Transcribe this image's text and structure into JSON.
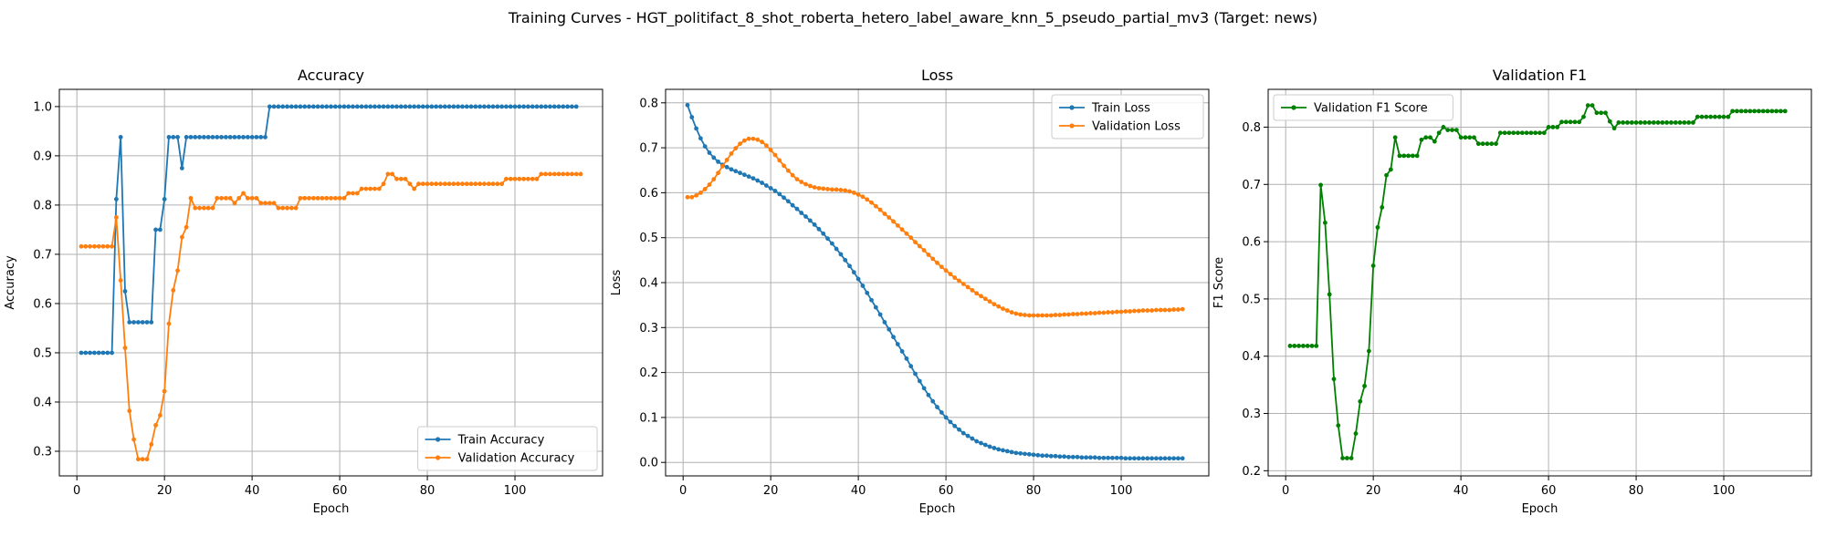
{
  "figure": {
    "suptitle": "Training Curves - HGT_politifact_8_shot_roberta_hetero_label_aware_knn_5_pseudo_partial_mv3 (Target: news)"
  },
  "colors": {
    "blue": "#1f77b4",
    "orange": "#ff7f0e",
    "green": "#008000",
    "grid": "#b0b0b0"
  },
  "chart_data": [
    {
      "type": "line",
      "title": "Accuracy",
      "xlabel": "Epoch",
      "ylabel": "Accuracy",
      "xlim": [
        -4,
        120
      ],
      "ylim": [
        0.25,
        1.035
      ],
      "xticks": [
        0,
        20,
        40,
        60,
        80,
        100
      ],
      "yticks": [
        0.3,
        0.4,
        0.5,
        0.6,
        0.7,
        0.8,
        0.9,
        1.0
      ],
      "yticklabels": [
        "0.3",
        "0.4",
        "0.5",
        "0.6",
        "0.7",
        "0.8",
        "0.9",
        "1.0"
      ],
      "grid": true,
      "legend_position": "lower-right",
      "series": [
        {
          "name": "Train Accuracy",
          "color": "#1f77b4",
          "y": [
            0.5,
            0.5,
            0.5,
            0.5,
            0.5,
            0.5,
            0.5,
            0.5,
            0.812,
            0.938,
            0.625,
            0.562,
            0.562,
            0.562,
            0.562,
            0.562,
            0.562,
            0.75,
            0.75,
            0.812,
            0.938,
            0.938,
            0.938,
            0.875,
            0.938,
            0.938,
            0.938,
            0.938,
            0.938,
            0.938,
            0.938,
            0.938,
            0.938,
            0.938,
            0.938,
            0.938,
            0.938,
            0.938,
            0.938,
            0.938,
            0.938,
            0.938,
            0.938,
            1.0,
            1.0,
            1.0,
            1.0,
            1.0,
            1.0,
            1.0,
            1.0,
            1.0,
            1.0,
            1.0,
            1.0,
            1.0,
            1.0,
            1.0,
            1.0,
            1.0,
            1.0,
            1.0,
            1.0,
            1.0,
            1.0,
            1.0,
            1.0,
            1.0,
            1.0,
            1.0,
            1.0,
            1.0,
            1.0,
            1.0,
            1.0,
            1.0,
            1.0,
            1.0,
            1.0,
            1.0,
            1.0,
            1.0,
            1.0,
            1.0,
            1.0,
            1.0,
            1.0,
            1.0,
            1.0,
            1.0,
            1.0,
            1.0,
            1.0,
            1.0,
            1.0,
            1.0,
            1.0,
            1.0,
            1.0,
            1.0,
            1.0,
            1.0,
            1.0,
            1.0,
            1.0,
            1.0,
            1.0,
            1.0,
            1.0,
            1.0,
            1.0,
            1.0,
            1.0,
            1.0
          ]
        },
        {
          "name": "Validation Accuracy",
          "color": "#ff7f0e",
          "y": [
            0.716,
            0.716,
            0.716,
            0.716,
            0.716,
            0.716,
            0.716,
            0.716,
            0.775,
            0.647,
            0.51,
            0.382,
            0.324,
            0.284,
            0.284,
            0.284,
            0.314,
            0.353,
            0.373,
            0.422,
            0.559,
            0.627,
            0.667,
            0.735,
            0.755,
            0.814,
            0.794,
            0.794,
            0.794,
            0.794,
            0.794,
            0.814,
            0.814,
            0.814,
            0.814,
            0.804,
            0.814,
            0.824,
            0.814,
            0.814,
            0.814,
            0.804,
            0.804,
            0.804,
            0.804,
            0.794,
            0.794,
            0.794,
            0.794,
            0.794,
            0.814,
            0.814,
            0.814,
            0.814,
            0.814,
            0.814,
            0.814,
            0.814,
            0.814,
            0.814,
            0.814,
            0.824,
            0.824,
            0.824,
            0.833,
            0.833,
            0.833,
            0.833,
            0.833,
            0.843,
            0.863,
            0.863,
            0.853,
            0.853,
            0.853,
            0.843,
            0.833,
            0.843,
            0.843,
            0.843,
            0.843,
            0.843,
            0.843,
            0.843,
            0.843,
            0.843,
            0.843,
            0.843,
            0.843,
            0.843,
            0.843,
            0.843,
            0.843,
            0.843,
            0.843,
            0.843,
            0.843,
            0.853,
            0.853,
            0.853,
            0.853,
            0.853,
            0.853,
            0.853,
            0.853,
            0.863,
            0.863,
            0.863,
            0.863,
            0.863,
            0.863,
            0.863,
            0.863,
            0.863,
            0.863
          ]
        }
      ]
    },
    {
      "type": "line",
      "title": "Loss",
      "xlabel": "Epoch",
      "ylabel": "Loss",
      "xlim": [
        -4,
        120
      ],
      "ylim": [
        -0.03,
        0.83
      ],
      "xticks": [
        0,
        20,
        40,
        60,
        80,
        100
      ],
      "yticks": [
        0.0,
        0.1,
        0.2,
        0.3,
        0.4,
        0.5,
        0.6,
        0.7,
        0.8
      ],
      "yticklabels": [
        "0.0",
        "0.1",
        "0.2",
        "0.3",
        "0.4",
        "0.5",
        "0.6",
        "0.7",
        "0.8"
      ],
      "grid": true,
      "legend_position": "upper-right",
      "series": [
        {
          "name": "Train Loss",
          "color": "#1f77b4",
          "y": [
            0.795,
            0.768,
            0.743,
            0.721,
            0.703,
            0.689,
            0.678,
            0.669,
            0.662,
            0.657,
            0.652,
            0.648,
            0.644,
            0.64,
            0.636,
            0.632,
            0.627,
            0.622,
            0.616,
            0.61,
            0.604,
            0.597,
            0.589,
            0.581,
            0.572,
            0.564,
            0.555,
            0.547,
            0.538,
            0.529,
            0.519,
            0.509,
            0.498,
            0.487,
            0.475,
            0.463,
            0.45,
            0.437,
            0.423,
            0.408,
            0.393,
            0.377,
            0.361,
            0.345,
            0.329,
            0.312,
            0.296,
            0.279,
            0.263,
            0.247,
            0.231,
            0.214,
            0.197,
            0.181,
            0.165,
            0.15,
            0.136,
            0.123,
            0.111,
            0.1,
            0.09,
            0.081,
            0.073,
            0.065,
            0.059,
            0.053,
            0.047,
            0.043,
            0.039,
            0.035,
            0.032,
            0.029,
            0.027,
            0.025,
            0.023,
            0.021,
            0.02,
            0.019,
            0.018,
            0.017,
            0.016,
            0.015,
            0.015,
            0.014,
            0.014,
            0.013,
            0.013,
            0.012,
            0.012,
            0.012,
            0.011,
            0.011,
            0.011,
            0.011,
            0.01,
            0.01,
            0.01,
            0.01,
            0.01,
            0.01,
            0.009,
            0.009,
            0.009,
            0.009,
            0.009,
            0.009,
            0.009,
            0.009,
            0.009,
            0.009,
            0.009,
            0.009,
            0.009,
            0.009
          ]
        },
        {
          "name": "Validation Loss",
          "color": "#ff7f0e",
          "y": [
            0.59,
            0.59,
            0.594,
            0.6,
            0.608,
            0.618,
            0.63,
            0.644,
            0.659,
            0.673,
            0.687,
            0.699,
            0.709,
            0.716,
            0.72,
            0.72,
            0.718,
            0.713,
            0.705,
            0.695,
            0.684,
            0.672,
            0.66,
            0.649,
            0.639,
            0.63,
            0.624,
            0.619,
            0.615,
            0.612,
            0.61,
            0.609,
            0.608,
            0.607,
            0.607,
            0.606,
            0.605,
            0.603,
            0.6,
            0.596,
            0.591,
            0.585,
            0.578,
            0.57,
            0.562,
            0.553,
            0.545,
            0.536,
            0.527,
            0.518,
            0.509,
            0.5,
            0.49,
            0.481,
            0.472,
            0.462,
            0.453,
            0.444,
            0.435,
            0.427,
            0.419,
            0.411,
            0.404,
            0.397,
            0.39,
            0.383,
            0.376,
            0.37,
            0.364,
            0.358,
            0.352,
            0.347,
            0.342,
            0.338,
            0.334,
            0.331,
            0.329,
            0.328,
            0.327,
            0.327,
            0.327,
            0.327,
            0.327,
            0.327,
            0.328,
            0.328,
            0.329,
            0.329,
            0.33,
            0.33,
            0.331,
            0.331,
            0.332,
            0.332,
            0.333,
            0.333,
            0.334,
            0.334,
            0.335,
            0.335,
            0.336,
            0.336,
            0.337,
            0.337,
            0.338,
            0.338,
            0.338,
            0.339,
            0.339,
            0.339,
            0.339,
            0.34,
            0.34,
            0.341
          ]
        }
      ]
    },
    {
      "type": "line",
      "title": "Validation F1",
      "xlabel": "Epoch",
      "ylabel": "F1 Score",
      "xlim": [
        -4,
        120
      ],
      "ylim": [
        0.191,
        0.866
      ],
      "xticks": [
        0,
        20,
        40,
        60,
        80,
        100
      ],
      "yticks": [
        0.2,
        0.3,
        0.4,
        0.5,
        0.6,
        0.7,
        0.8
      ],
      "yticklabels": [
        "0.2",
        "0.3",
        "0.4",
        "0.5",
        "0.6",
        "0.7",
        "0.8"
      ],
      "grid": true,
      "legend_position": "upper-left",
      "series": [
        {
          "name": "Validation F1 Score",
          "color": "#008000",
          "y": [
            0.418,
            0.418,
            0.418,
            0.418,
            0.418,
            0.418,
            0.418,
            0.699,
            0.633,
            0.508,
            0.36,
            0.279,
            0.222,
            0.222,
            0.222,
            0.265,
            0.321,
            0.348,
            0.409,
            0.558,
            0.625,
            0.66,
            0.716,
            0.726,
            0.782,
            0.75,
            0.75,
            0.75,
            0.75,
            0.75,
            0.778,
            0.782,
            0.782,
            0.775,
            0.79,
            0.8,
            0.795,
            0.795,
            0.795,
            0.782,
            0.782,
            0.782,
            0.782,
            0.771,
            0.771,
            0.771,
            0.771,
            0.771,
            0.79,
            0.79,
            0.79,
            0.79,
            0.79,
            0.79,
            0.79,
            0.79,
            0.79,
            0.79,
            0.79,
            0.8,
            0.8,
            0.8,
            0.809,
            0.809,
            0.809,
            0.809,
            0.809,
            0.818,
            0.838,
            0.838,
            0.825,
            0.825,
            0.825,
            0.81,
            0.798,
            0.808,
            0.808,
            0.808,
            0.808,
            0.808,
            0.808,
            0.808,
            0.808,
            0.808,
            0.808,
            0.808,
            0.808,
            0.808,
            0.808,
            0.808,
            0.808,
            0.808,
            0.808,
            0.818,
            0.818,
            0.818,
            0.818,
            0.818,
            0.818,
            0.818,
            0.818,
            0.828,
            0.828,
            0.828,
            0.828,
            0.828,
            0.828,
            0.828,
            0.828,
            0.828,
            0.828,
            0.828,
            0.828,
            0.828
          ]
        }
      ]
    }
  ]
}
